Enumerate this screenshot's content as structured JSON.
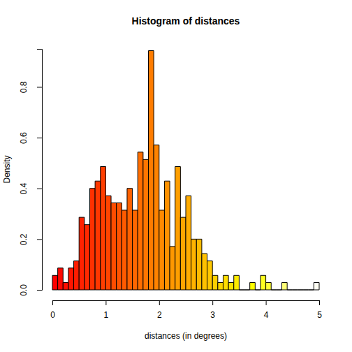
{
  "chart_data": {
    "type": "histogram",
    "title": "Histogram of distances",
    "x_label": "distances (in degrees)",
    "y_label": "Density",
    "bins": [
      0,
      0.1,
      0.2,
      0.3,
      0.4,
      0.5,
      0.6,
      0.7,
      0.8,
      0.9,
      1,
      1.1,
      1.2,
      1.3,
      1.4,
      1.5,
      1.6,
      1.7,
      1.8,
      1.9,
      2,
      2.1,
      2.2,
      2.3,
      2.4,
      2.5,
      2.6,
      2.7,
      2.8,
      2.9,
      3,
      3.1,
      3.2,
      3.3,
      3.4,
      3.5,
      3.6,
      3.7,
      3.8,
      3.9,
      4,
      4.1,
      4.2,
      4.3,
      4.4,
      4.5,
      4.6,
      4.7,
      4.8,
      4.9,
      5
    ],
    "values": [
      0.057,
      0.086,
      0.029,
      0.086,
      0.114,
      0.286,
      0.257,
      0.4,
      0.429,
      0.486,
      0.371,
      0.343,
      0.343,
      0.314,
      0.4,
      0.314,
      0.543,
      0.514,
      0.943,
      0.571,
      0.314,
      0.429,
      0.171,
      0.486,
      0.286,
      0.371,
      0.2,
      0.2,
      0.143,
      0.114,
      0.057,
      0.029,
      0.057,
      0.029,
      0.057,
      0,
      0,
      0.029,
      0,
      0.057,
      0.029,
      0,
      0,
      0.029,
      0,
      0,
      0,
      0,
      0,
      0.029
    ],
    "colors": [
      "#FF0000",
      "#FF0700",
      "#FF0E00",
      "#FF1500",
      "#FF1C00",
      "#FF2200",
      "#FF2900",
      "#FF3000",
      "#FF3700",
      "#FF3E00",
      "#FF4500",
      "#FF4C00",
      "#FF5300",
      "#FF5A00",
      "#FF6000",
      "#FF6700",
      "#FF6E00",
      "#FF7500",
      "#FF7C00",
      "#FF8300",
      "#FF8A00",
      "#FF9100",
      "#FF9800",
      "#FF9F00",
      "#FFA500",
      "#FFAC00",
      "#FFB300",
      "#FFBA00",
      "#FFC100",
      "#FFC800",
      "#FFCF00",
      "#FFD600",
      "#FFDD00",
      "#FFE300",
      "#FFEA00",
      "#FFF100",
      "#FFF800",
      "#FFFF00",
      "#FFFF0B",
      "#FFFF20",
      "#FFFF35",
      "#FFFF4A",
      "#FFFF60",
      "#FFFF75",
      "#FFFF8A",
      "#FFFF9F",
      "#FFFFB5",
      "#FFFFCA",
      "#FFFFDF",
      "#FFFFF4"
    ],
    "xlim": [
      0,
      5
    ],
    "ylim": [
      0,
      0.95
    ],
    "xticks": [
      0,
      1,
      2,
      3,
      4,
      5
    ],
    "yticks": [
      {
        "value": 0,
        "label": "0.0"
      },
      {
        "value": 0.2,
        "label": "0.2"
      },
      {
        "value": 0.4,
        "label": "0.4"
      },
      {
        "value": 0.6,
        "label": "0.6"
      },
      {
        "value": 0.8,
        "label": "0.8"
      }
    ]
  }
}
